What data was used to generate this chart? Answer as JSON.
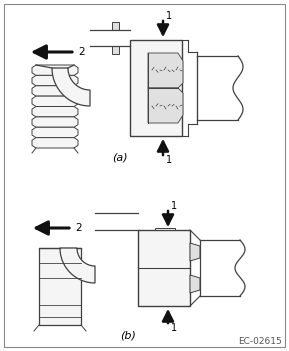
{
  "fig_width": 2.89,
  "fig_height": 3.51,
  "dpi": 100,
  "bg_color": "#ffffff",
  "border_color": "#000000",
  "line_color": "#404040",
  "fill_light": "#f5f5f5",
  "fill_mid": "#e0e0e0",
  "arrow_color": "#111111",
  "label_a": "(a)",
  "label_b": "(b)",
  "ref_code": "EC-02615",
  "label1": "1",
  "label2": "2"
}
